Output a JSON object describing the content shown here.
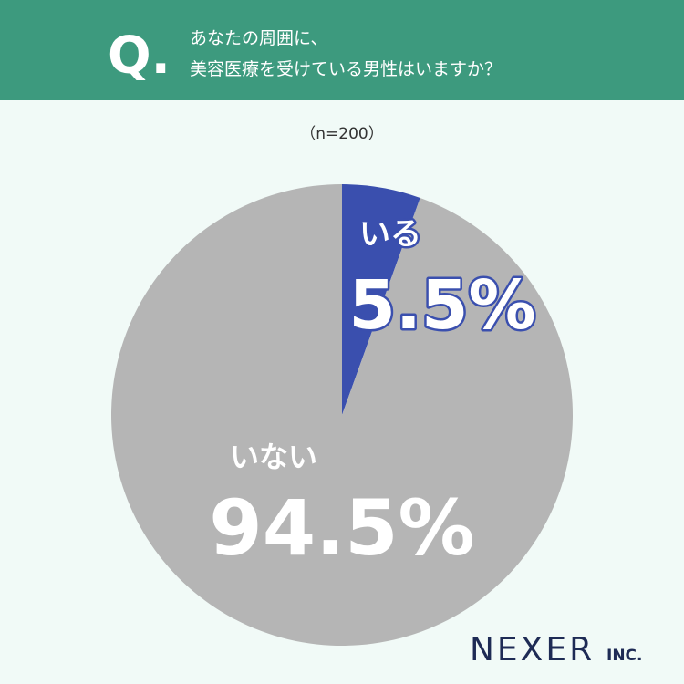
{
  "header": {
    "mark": "Q.",
    "title_lines": [
      "あなたの周囲に、",
      "美容医療を受けている男性はいますか？"
    ]
  },
  "chart_data": {
    "type": "pie",
    "subtitle": "（n=200）",
    "categories": [
      "いる",
      "いない"
    ],
    "values": [
      5.5,
      94.5
    ],
    "value_labels": [
      "5.5%",
      "94.5%"
    ],
    "colors": [
      "#3a4fae",
      "#b5b5b5"
    ]
  },
  "logo": {
    "name": "NEXER",
    "suffix": "INC."
  }
}
